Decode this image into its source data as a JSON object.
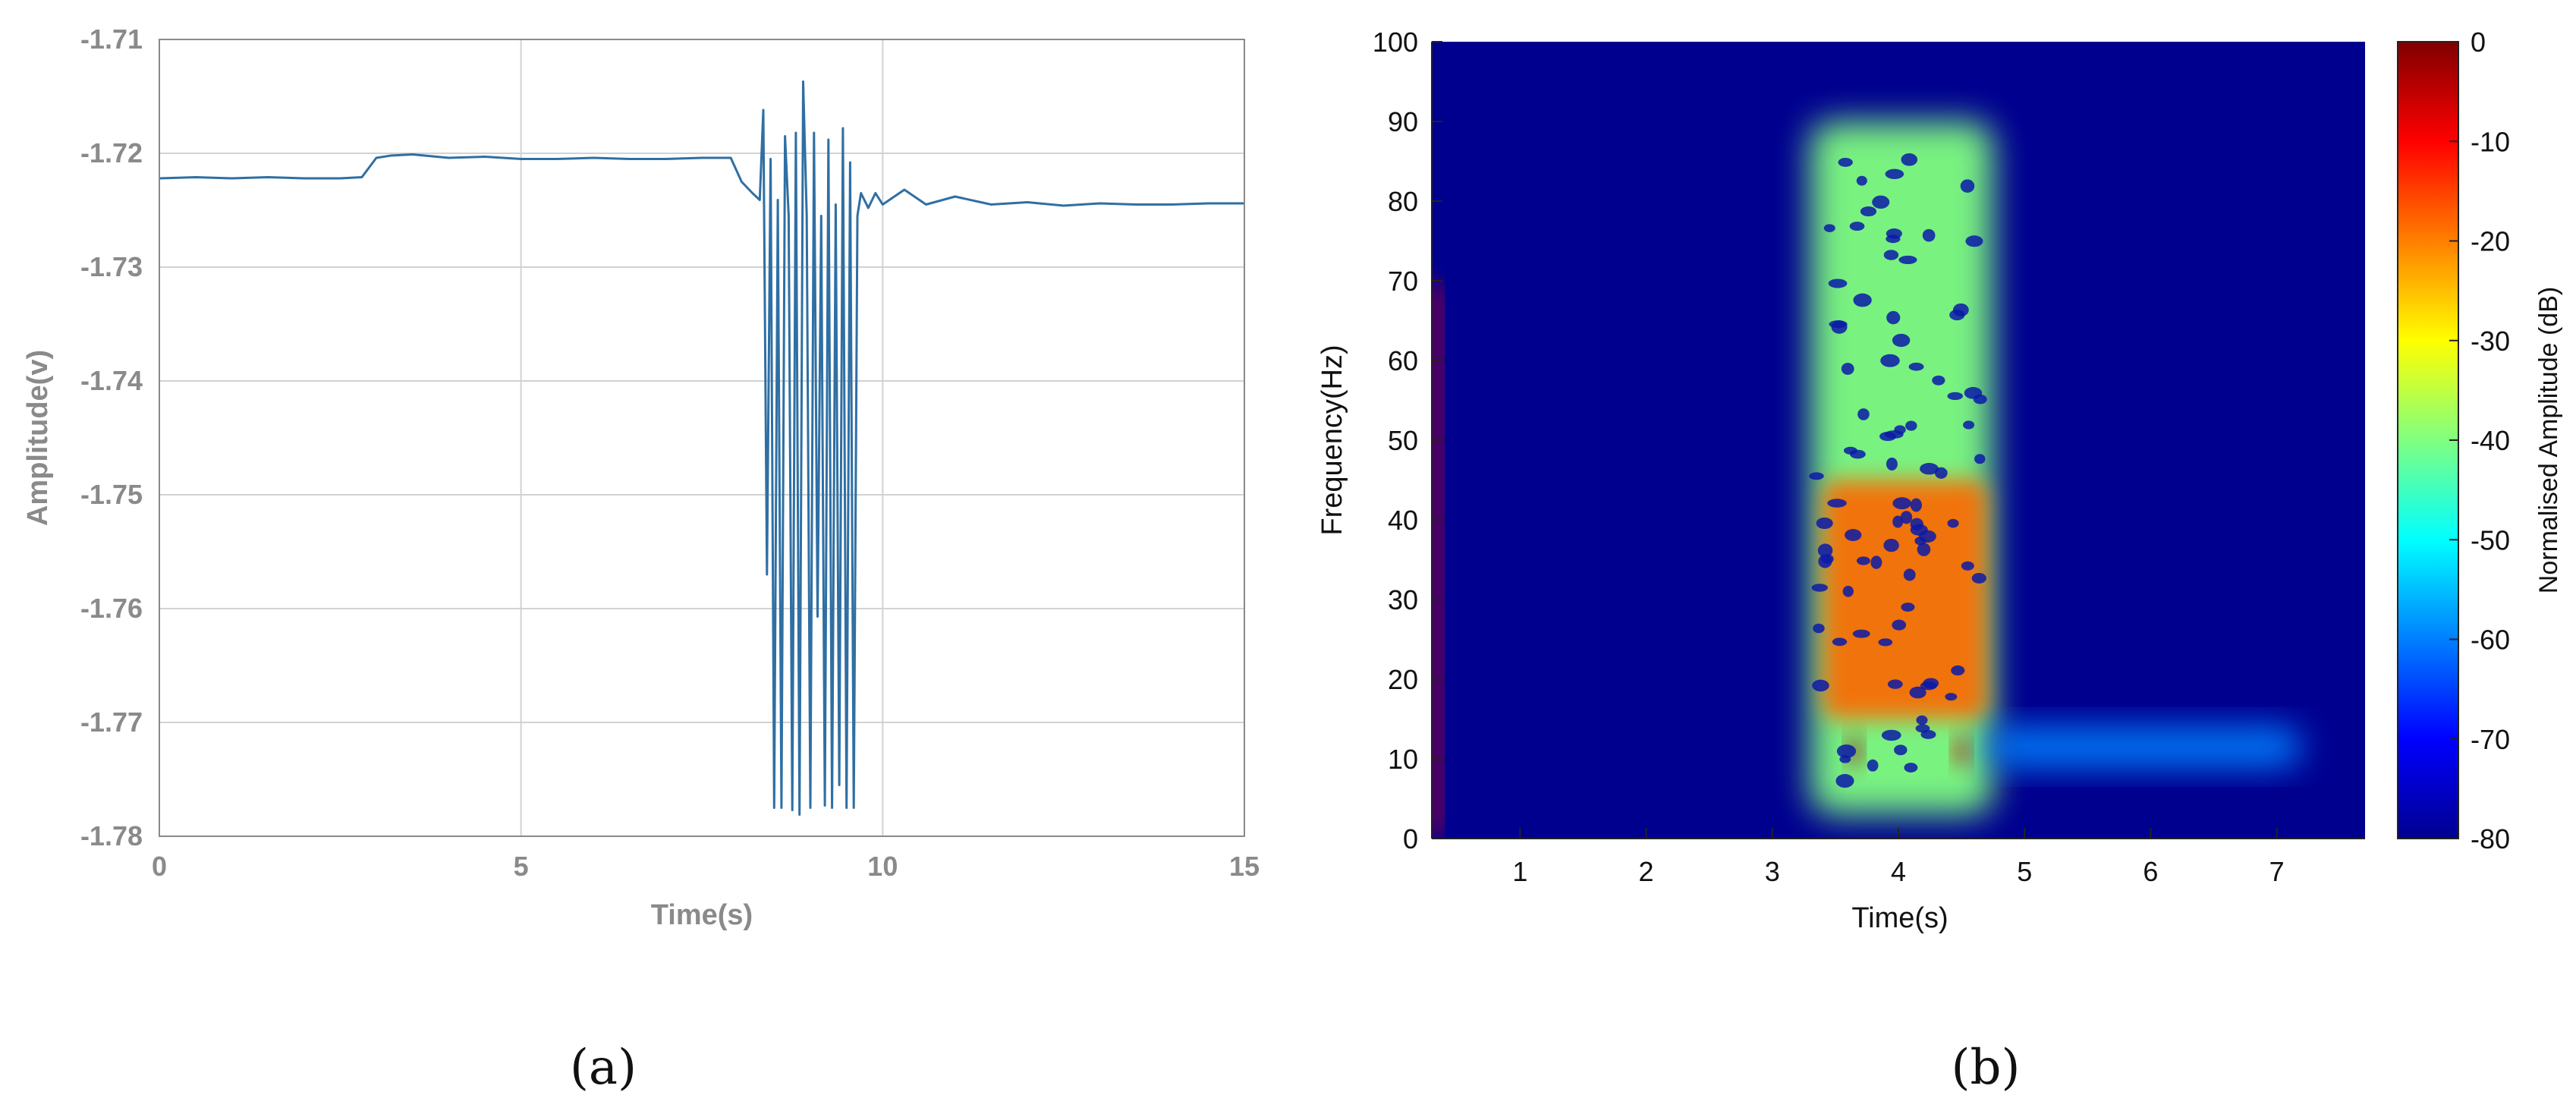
{
  "panels": [
    {
      "caption": "(a)"
    },
    {
      "caption": "(b)"
    }
  ],
  "colors": {
    "signal_line": "#2f6fa3",
    "grid": "#d2d2d2",
    "axis_text_a": "#8a8a8a",
    "axis_text_b": "#111111",
    "spectrogram_background": "#00008f"
  },
  "chart_data": [
    {
      "type": "line",
      "panel": "(a)",
      "title": "",
      "xlabel": "Time(s)",
      "ylabel": "Amplitude(v)",
      "xlim": [
        0,
        15
      ],
      "ylim": [
        -1.78,
        -1.71
      ],
      "xticks": [
        0,
        5,
        10,
        15
      ],
      "xtick_labels": [
        "0",
        "5",
        "10",
        "15"
      ],
      "yticks": [
        -1.78,
        -1.77,
        -1.76,
        -1.75,
        -1.74,
        -1.73,
        -1.72,
        -1.71
      ],
      "ytick_labels": [
        "-1.78",
        "-1.77",
        "-1.76",
        "-1.75",
        "-1.74",
        "-1.73",
        "-1.72",
        "-1.71"
      ],
      "grid": true,
      "legend": "none",
      "series": [
        {
          "x": [
            0,
            0.5,
            1.0,
            1.5,
            2.0,
            2.5,
            2.8,
            3.0,
            3.2,
            3.5,
            4.0,
            4.5,
            5.0,
            5.5,
            6.0,
            6.5,
            7.0,
            7.5,
            7.9,
            8.05,
            8.2,
            8.3,
            8.35,
            8.4,
            8.45,
            8.5,
            8.55,
            8.6,
            8.65,
            8.7,
            8.75,
            8.8,
            8.85,
            8.9,
            8.95,
            9.0,
            9.05,
            9.1,
            9.15,
            9.2,
            9.25,
            9.3,
            9.35,
            9.4,
            9.45,
            9.5,
            9.55,
            9.6,
            9.65,
            9.7,
            9.8,
            9.9,
            10.0,
            10.3,
            10.6,
            11.0,
            11.5,
            12.0,
            12.5,
            13.0,
            13.5,
            14.0,
            14.5,
            15.0
          ],
          "y": [
            -1.7222,
            -1.7221,
            -1.7222,
            -1.7221,
            -1.7222,
            -1.7222,
            -1.7221,
            -1.7204,
            -1.7202,
            -1.7201,
            -1.7204,
            -1.7203,
            -1.7205,
            -1.7205,
            -1.7204,
            -1.7205,
            -1.7205,
            -1.7204,
            -1.7204,
            -1.7225,
            -1.7235,
            -1.7241,
            -1.7162,
            -1.757,
            -1.7205,
            -1.7775,
            -1.7241,
            -1.7775,
            -1.7185,
            -1.7255,
            -1.7777,
            -1.7182,
            -1.7781,
            -1.7137,
            -1.7255,
            -1.7775,
            -1.7182,
            -1.7607,
            -1.7255,
            -1.7773,
            -1.7188,
            -1.7775,
            -1.7245,
            -1.7755,
            -1.7178,
            -1.7775,
            -1.7208,
            -1.7775,
            -1.7255,
            -1.7235,
            -1.7248,
            -1.7235,
            -1.7245,
            -1.7232,
            -1.7245,
            -1.7238,
            -1.7245,
            -1.7243,
            -1.7246,
            -1.7244,
            -1.7245,
            -1.7245,
            -1.7244,
            -1.7244
          ]
        }
      ]
    },
    {
      "type": "heatmap",
      "panel": "(b)",
      "title": "",
      "xlabel": "Time(s)",
      "ylabel": "Frequency(Hz)",
      "xlim": [
        0.3,
        7.7
      ],
      "ylim": [
        0,
        100
      ],
      "xticks": [
        1,
        2,
        3,
        4,
        5,
        6,
        7
      ],
      "xtick_labels": [
        "1",
        "2",
        "3",
        "4",
        "5",
        "6",
        "7"
      ],
      "yticks": [
        0,
        10,
        20,
        30,
        40,
        50,
        60,
        70,
        80,
        90,
        100
      ],
      "ytick_labels": [
        "0",
        "10",
        "20",
        "30",
        "40",
        "50",
        "60",
        "70",
        "80",
        "90",
        "100"
      ],
      "grid": false,
      "colorbar": {
        "label": "Normalised Amplitude (dB)",
        "range": [
          -80,
          0
        ],
        "ticks": [
          0,
          -10,
          -20,
          -30,
          -40,
          -50,
          -60,
          -70,
          -80
        ],
        "tick_labels": [
          "0",
          "-10",
          "-20",
          "-30",
          "-40",
          "-50",
          "-60",
          "-70",
          "-80"
        ],
        "colormap": "jet"
      },
      "energy_regions": [
        {
          "t_range": [
            3.3,
            4.75
          ],
          "f_range": [
            3,
            90
          ],
          "peak_db": -40
        },
        {
          "t_range": [
            3.4,
            4.7
          ],
          "f_range": [
            15,
            45
          ],
          "peak_db": -18
        },
        {
          "t_range": [
            3.6,
            3.7
          ],
          "f_range": [
            9,
            13
          ],
          "peak_db": -2
        },
        {
          "t_range": [
            4.45,
            4.55
          ],
          "f_range": [
            9,
            13
          ],
          "peak_db": -5
        },
        {
          "t_range": [
            4.7,
            7.2
          ],
          "f_range": [
            9,
            14
          ],
          "peak_db": -60
        },
        {
          "t_range": [
            0.3,
            0.37
          ],
          "f_range": [
            0,
            70
          ],
          "peak_db": -10
        }
      ]
    }
  ]
}
